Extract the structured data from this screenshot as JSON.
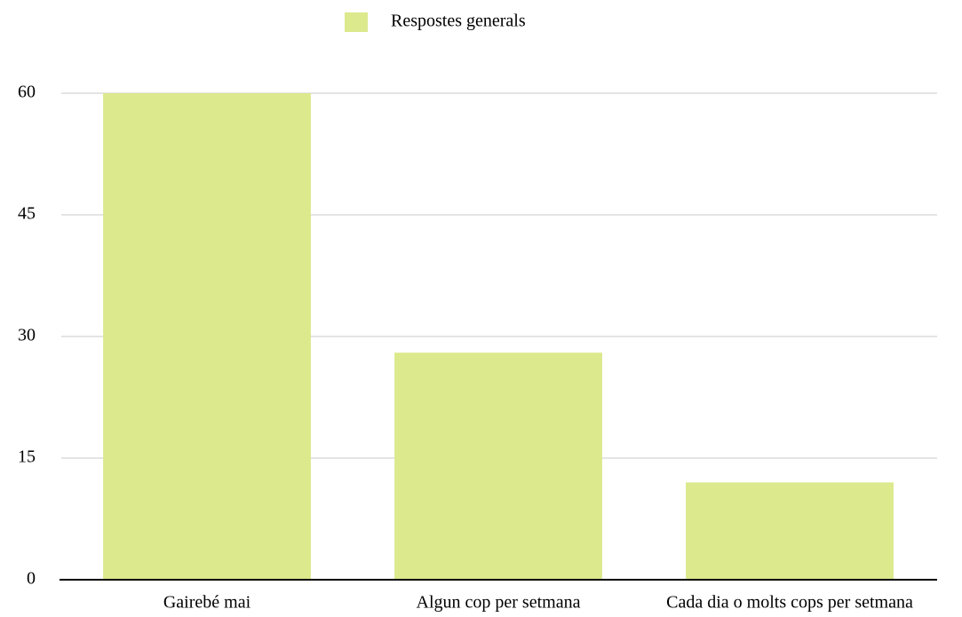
{
  "chart_data": {
    "type": "bar",
    "categories": [
      "Gairebé mai",
      "Algun cop per setmana",
      "Cada dia o molts cops per setmana"
    ],
    "series": [
      {
        "name": "Respostes generals",
        "color": "#dce98c",
        "values": [
          60,
          28,
          12
        ]
      }
    ],
    "ylim": [
      0,
      60
    ],
    "yticks": [
      0,
      15,
      30,
      45,
      60
    ],
    "grid": true,
    "legend": "top"
  }
}
